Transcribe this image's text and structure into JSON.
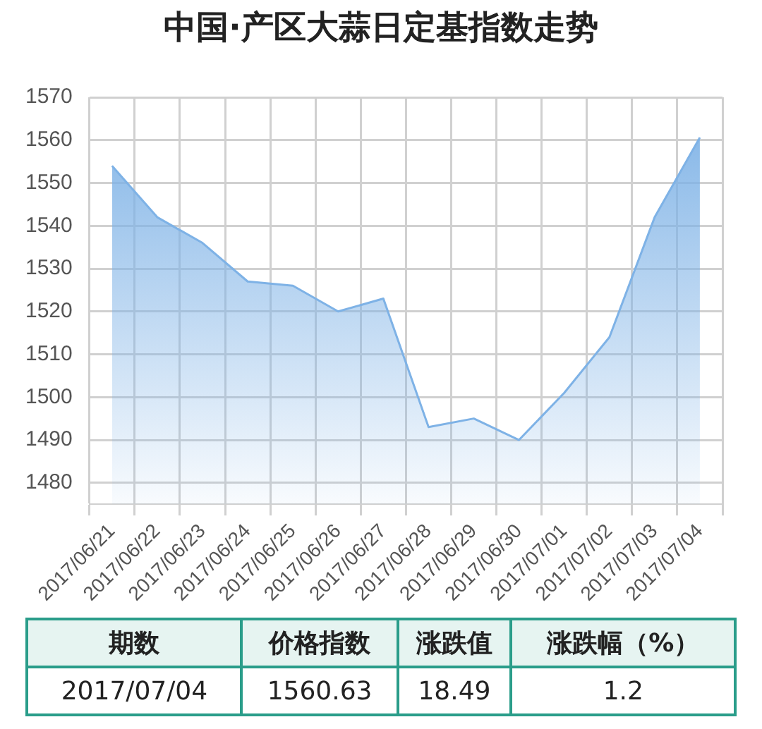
{
  "chart_data": {
    "type": "area",
    "title": "中国·产区大蒜日定基指数走势",
    "categories": [
      "2017/06/21",
      "2017/06/22",
      "2017/06/23",
      "2017/06/24",
      "2017/06/25",
      "2017/06/26",
      "2017/06/27",
      "2017/06/28",
      "2017/06/29",
      "2017/06/30",
      "2017/07/01",
      "2017/07/02",
      "2017/07/03",
      "2017/07/04"
    ],
    "series": [
      {
        "color": "#7eb2e6",
        "values": [
          1554,
          1542,
          1536,
          1527,
          1526,
          1520,
          1523,
          1493,
          1495,
          1490,
          1501,
          1514,
          1542,
          1560.63
        ]
      }
    ],
    "ylim": [
      1475,
      1570
    ],
    "yticks": [
      1480,
      1490,
      1500,
      1510,
      1520,
      1530,
      1540,
      1550,
      1560,
      1570
    ],
    "grid": true,
    "legend": false,
    "marker": "none",
    "line_style": "solid",
    "annotations": [
      "期数",
      "价格指数",
      "涨跌值",
      "涨跌幅（%）",
      "2017/07/04",
      "1560.63",
      "18.49",
      "1.2"
    ]
  }
}
